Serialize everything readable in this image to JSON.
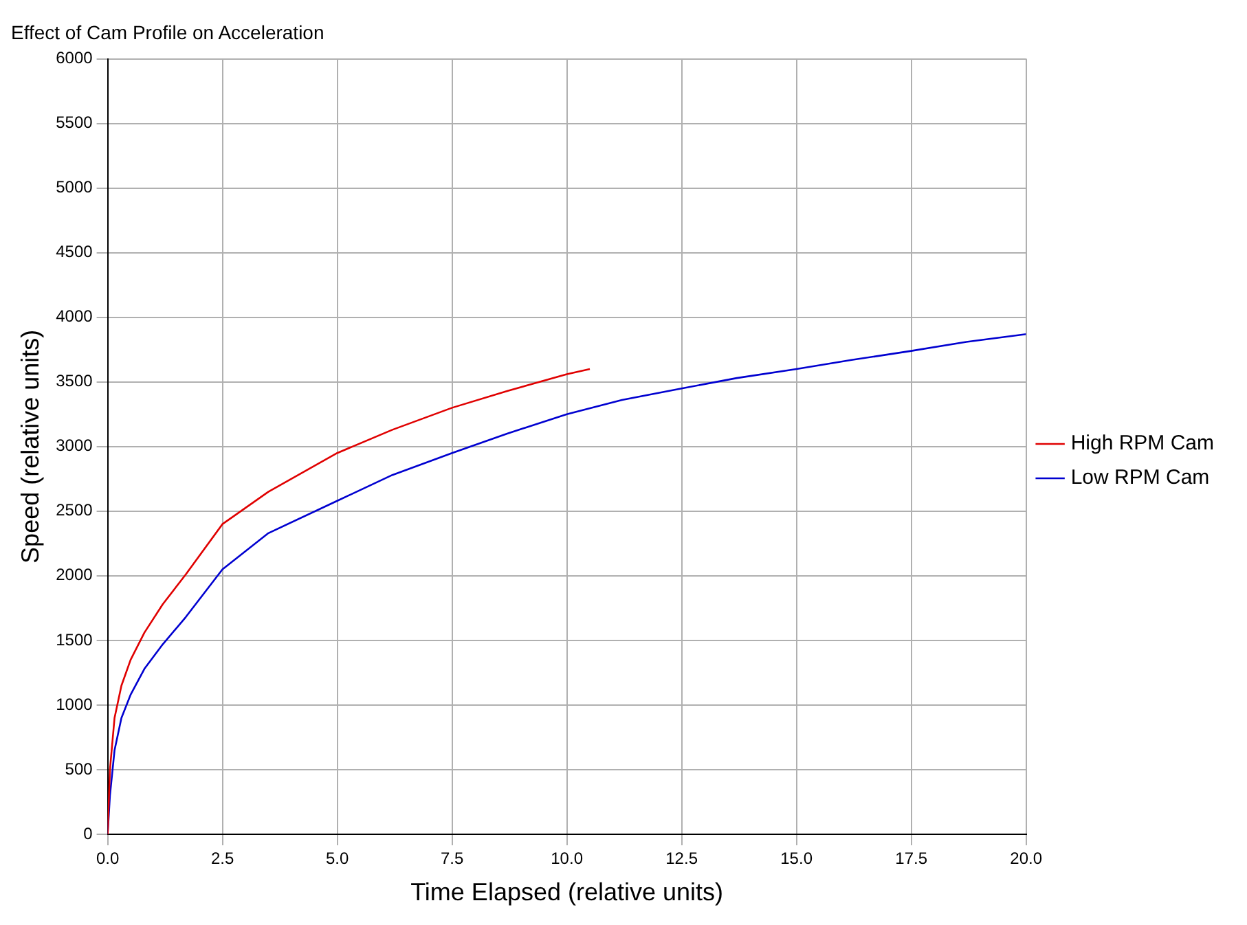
{
  "chart_data": {
    "type": "line",
    "title": "Effect of Cam Profile on Acceleration",
    "xlabel": "Time Elapsed (relative units)",
    "ylabel": "Speed (relative units)",
    "series": [
      {
        "name": "High RPM Cam",
        "color": "#e00000",
        "x": [
          0,
          0.05,
          0.15,
          0.3,
          0.5,
          0.8,
          1.2,
          1.7,
          2.5,
          3.5,
          5,
          6.2,
          7.5,
          8.7,
          10,
          10.5
        ],
        "values": [
          0,
          500,
          900,
          1150,
          1350,
          1560,
          1780,
          2010,
          2400,
          2650,
          2950,
          3130,
          3300,
          3430,
          3560,
          3600
        ]
      },
      {
        "name": "Low RPM Cam",
        "color": "#0000d0",
        "x": [
          0,
          0.05,
          0.15,
          0.3,
          0.5,
          0.8,
          1.2,
          1.7,
          2.5,
          3.5,
          5,
          6.2,
          7.5,
          8.7,
          10,
          11.2,
          12.5,
          13.7,
          15,
          16.2,
          17.5,
          18.7,
          20
        ],
        "values": [
          0,
          300,
          650,
          900,
          1080,
          1280,
          1470,
          1680,
          2050,
          2330,
          2580,
          2780,
          2950,
          3100,
          3250,
          3360,
          3450,
          3530,
          3600,
          3670,
          3740,
          3810,
          3870
        ]
      }
    ],
    "xlim": [
      0,
      20
    ],
    "xticks": [
      {
        "value": 0,
        "label": "0.0"
      },
      {
        "value": 2.5,
        "label": "2.5"
      },
      {
        "value": 5,
        "label": "5.0"
      },
      {
        "value": 7.5,
        "label": "7.5"
      },
      {
        "value": 10,
        "label": "10.0"
      },
      {
        "value": 12.5,
        "label": "12.5"
      },
      {
        "value": 15,
        "label": "15.0"
      },
      {
        "value": 17.5,
        "label": "17.5"
      },
      {
        "value": 20,
        "label": "20.0"
      }
    ],
    "ylim": [
      0,
      6000
    ],
    "yticks": [
      0,
      500,
      1000,
      1500,
      2000,
      2500,
      3000,
      3500,
      4000,
      4500,
      5000,
      5500,
      6000
    ],
    "grid": true,
    "legend": "right",
    "marker": "none",
    "line_style": "solid"
  }
}
